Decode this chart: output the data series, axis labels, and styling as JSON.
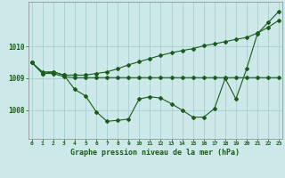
{
  "title": "Graphe pression niveau de la mer (hPa)",
  "bg_color": "#cce8e8",
  "grid_color": "#aacece",
  "line_color": "#1a5c1a",
  "x_ticks": [
    0,
    1,
    2,
    3,
    4,
    5,
    6,
    7,
    8,
    9,
    10,
    11,
    12,
    13,
    14,
    15,
    16,
    17,
    18,
    19,
    20,
    21,
    22,
    23
  ],
  "y_ticks": [
    1008,
    1009,
    1010
  ],
  "ylim": [
    1007.1,
    1011.4
  ],
  "xlim": [
    -0.3,
    23.3
  ],
  "series1": [
    1009.5,
    1009.2,
    1009.2,
    1009.1,
    1008.65,
    1008.45,
    1007.95,
    1007.65,
    1007.68,
    1007.72,
    1008.35,
    1008.42,
    1008.38,
    1008.2,
    1008.0,
    1007.78,
    1007.78,
    1008.05,
    1009.0,
    1008.35,
    1009.3,
    1010.4,
    1010.75,
    1011.1
  ],
  "series2": [
    1009.5,
    1009.15,
    1009.15,
    1009.05,
    1009.02,
    1009.02,
    1009.02,
    1009.02,
    1009.02,
    1009.02,
    1009.02,
    1009.02,
    1009.02,
    1009.02,
    1009.02,
    1009.02,
    1009.02,
    1009.02,
    1009.02,
    1009.02,
    1009.02,
    1009.02,
    1009.02,
    1009.02
  ],
  "series3": [
    1009.5,
    1009.15,
    1009.2,
    1009.1,
    1009.1,
    1009.1,
    1009.15,
    1009.2,
    1009.3,
    1009.42,
    1009.52,
    1009.62,
    1009.72,
    1009.8,
    1009.87,
    1009.93,
    1010.02,
    1010.08,
    1010.15,
    1010.22,
    1010.28,
    1010.42,
    1010.6,
    1010.82
  ]
}
